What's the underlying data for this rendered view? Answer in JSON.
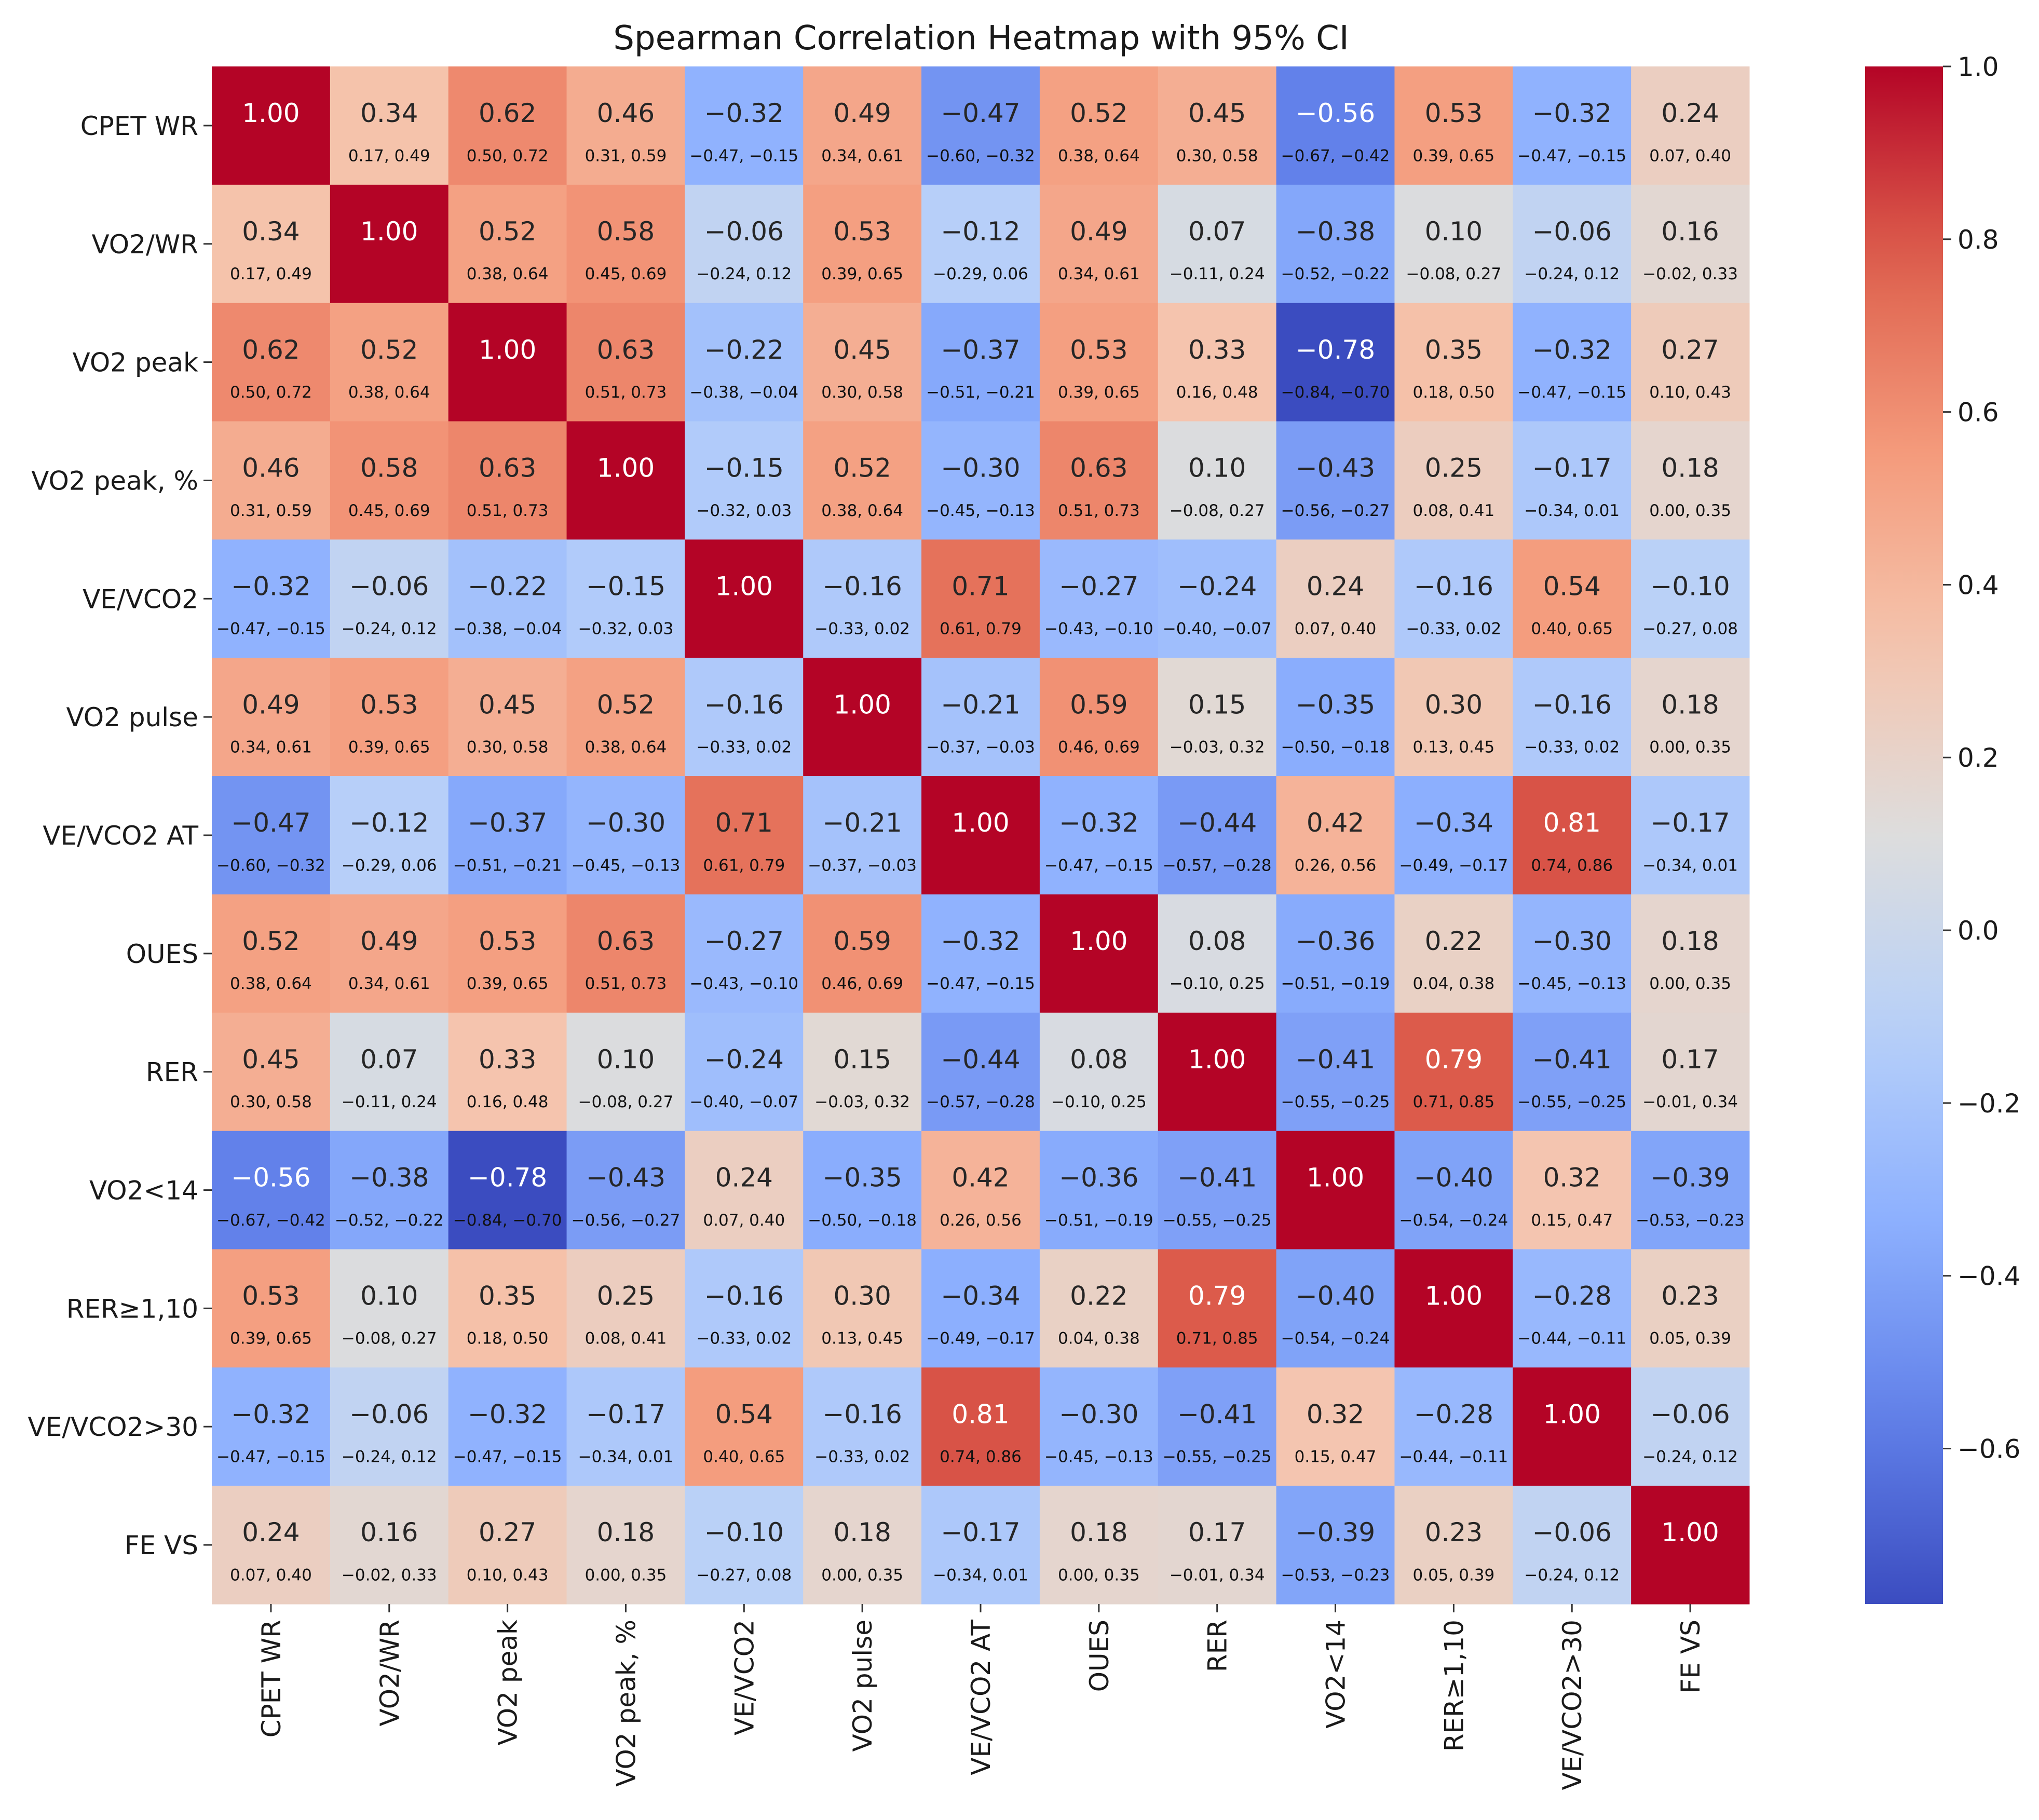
{
  "chart_data": {
    "type": "heatmap",
    "title": "Spearman Correlation Heatmap with 95% CI",
    "xlabel": "",
    "ylabel": "",
    "labels": [
      "CPET WR",
      "VO2/WR",
      "VO2 peak",
      "VO2 peak, %",
      "VE/VCO2",
      "VO2 pulse",
      "VE/VCO2 AT",
      "OUES",
      "RER",
      "VO2<14",
      "RER≥1,10",
      "VE/VCO2>30",
      "FE VS"
    ],
    "values": [
      [
        "1.00",
        "0.34",
        "0.62",
        "0.46",
        "−0.32",
        "0.49",
        "−0.47",
        "0.52",
        "0.45",
        "−0.56",
        "0.53",
        "−0.32",
        "0.24"
      ],
      [
        "0.34",
        "1.00",
        "0.52",
        "0.58",
        "−0.06",
        "0.53",
        "−0.12",
        "0.49",
        "0.07",
        "−0.38",
        "0.10",
        "−0.06",
        "0.16"
      ],
      [
        "0.62",
        "0.52",
        "1.00",
        "0.63",
        "−0.22",
        "0.45",
        "−0.37",
        "0.53",
        "0.33",
        "−0.78",
        "0.35",
        "−0.32",
        "0.27"
      ],
      [
        "0.46",
        "0.58",
        "0.63",
        "1.00",
        "−0.15",
        "0.52",
        "−0.30",
        "0.63",
        "0.10",
        "−0.43",
        "0.25",
        "−0.17",
        "0.18"
      ],
      [
        "−0.32",
        "−0.06",
        "−0.22",
        "−0.15",
        "1.00",
        "−0.16",
        "0.71",
        "−0.27",
        "−0.24",
        "0.24",
        "−0.16",
        "0.54",
        "−0.10"
      ],
      [
        "0.49",
        "0.53",
        "0.45",
        "0.52",
        "−0.16",
        "1.00",
        "−0.21",
        "0.59",
        "0.15",
        "−0.35",
        "0.30",
        "−0.16",
        "0.18"
      ],
      [
        "−0.47",
        "−0.12",
        "−0.37",
        "−0.30",
        "0.71",
        "−0.21",
        "1.00",
        "−0.32",
        "−0.44",
        "0.42",
        "−0.34",
        "0.81",
        "−0.17"
      ],
      [
        "0.52",
        "0.49",
        "0.53",
        "0.63",
        "−0.27",
        "0.59",
        "−0.32",
        "1.00",
        "0.08",
        "−0.36",
        "0.22",
        "−0.30",
        "0.18"
      ],
      [
        "0.45",
        "0.07",
        "0.33",
        "0.10",
        "−0.24",
        "0.15",
        "−0.44",
        "0.08",
        "1.00",
        "−0.41",
        "0.79",
        "−0.41",
        "0.17"
      ],
      [
        "−0.56",
        "−0.38",
        "−0.78",
        "−0.43",
        "0.24",
        "−0.35",
        "0.42",
        "−0.36",
        "−0.41",
        "1.00",
        "−0.40",
        "0.32",
        "−0.39"
      ],
      [
        "0.53",
        "0.10",
        "0.35",
        "0.25",
        "−0.16",
        "0.30",
        "−0.34",
        "0.22",
        "0.79",
        "−0.40",
        "1.00",
        "−0.28",
        "0.23"
      ],
      [
        "−0.32",
        "−0.06",
        "−0.32",
        "−0.17",
        "0.54",
        "−0.16",
        "0.81",
        "−0.30",
        "−0.41",
        "0.32",
        "−0.28",
        "1.00",
        "−0.06"
      ],
      [
        "0.24",
        "0.16",
        "0.27",
        "0.18",
        "−0.10",
        "0.18",
        "−0.17",
        "0.18",
        "0.17",
        "−0.39",
        "0.23",
        "−0.06",
        "1.00"
      ]
    ],
    "ci": [
      [
        "",
        "0.17, 0.49",
        "0.50, 0.72",
        "0.31, 0.59",
        "−0.47, −0.15",
        "0.34, 0.61",
        "−0.60, −0.32",
        "0.38, 0.64",
        "0.30, 0.58",
        "−0.67, −0.42",
        "0.39, 0.65",
        "−0.47, −0.15",
        "0.07, 0.40"
      ],
      [
        "0.17, 0.49",
        "",
        "0.38, 0.64",
        "0.45, 0.69",
        "−0.24, 0.12",
        "0.39, 0.65",
        "−0.29, 0.06",
        "0.34, 0.61",
        "−0.11, 0.24",
        "−0.52, −0.22",
        "−0.08, 0.27",
        "−0.24, 0.12",
        "−0.02, 0.33"
      ],
      [
        "0.50, 0.72",
        "0.38, 0.64",
        "",
        "0.51, 0.73",
        "−0.38, −0.04",
        "0.30, 0.58",
        "−0.51, −0.21",
        "0.39, 0.65",
        "0.16, 0.48",
        "−0.84, −0.70",
        "0.18, 0.50",
        "−0.47, −0.15",
        "0.10, 0.43"
      ],
      [
        "0.31, 0.59",
        "0.45, 0.69",
        "0.51, 0.73",
        "",
        "−0.32, 0.03",
        "0.38, 0.64",
        "−0.45, −0.13",
        "0.51, 0.73",
        "−0.08, 0.27",
        "−0.56, −0.27",
        "0.08, 0.41",
        "−0.34, 0.01",
        "0.00, 0.35"
      ],
      [
        "−0.47, −0.15",
        "−0.24, 0.12",
        "−0.38, −0.04",
        "−0.32, 0.03",
        "",
        "−0.33, 0.02",
        "0.61, 0.79",
        "−0.43, −0.10",
        "−0.40, −0.07",
        "0.07, 0.40",
        "−0.33, 0.02",
        "0.40, 0.65",
        "−0.27, 0.08"
      ],
      [
        "0.34, 0.61",
        "0.39, 0.65",
        "0.30, 0.58",
        "0.38, 0.64",
        "−0.33, 0.02",
        "",
        "−0.37, −0.03",
        "0.46, 0.69",
        "−0.03, 0.32",
        "−0.50, −0.18",
        "0.13, 0.45",
        "−0.33, 0.02",
        "0.00, 0.35"
      ],
      [
        "−0.60, −0.32",
        "−0.29, 0.06",
        "−0.51, −0.21",
        "−0.45, −0.13",
        "0.61, 0.79",
        "−0.37, −0.03",
        "",
        "−0.47, −0.15",
        "−0.57, −0.28",
        "0.26, 0.56",
        "−0.49, −0.17",
        "0.74, 0.86",
        "−0.34, 0.01"
      ],
      [
        "0.38, 0.64",
        "0.34, 0.61",
        "0.39, 0.65",
        "0.51, 0.73",
        "−0.43, −0.10",
        "0.46, 0.69",
        "−0.47, −0.15",
        "",
        "−0.10, 0.25",
        "−0.51, −0.19",
        "0.04, 0.38",
        "−0.45, −0.13",
        "0.00, 0.35"
      ],
      [
        "0.30, 0.58",
        "−0.11, 0.24",
        "0.16, 0.48",
        "−0.08, 0.27",
        "−0.40, −0.07",
        "−0.03, 0.32",
        "−0.57, −0.28",
        "−0.10, 0.25",
        "",
        "−0.55, −0.25",
        "0.71, 0.85",
        "−0.55, −0.25",
        "−0.01, 0.34"
      ],
      [
        "−0.67, −0.42",
        "−0.52, −0.22",
        "−0.84, −0.70",
        "−0.56, −0.27",
        "0.07, 0.40",
        "−0.50, −0.18",
        "0.26, 0.56",
        "−0.51, −0.19",
        "−0.55, −0.25",
        "",
        "−0.54, −0.24",
        "0.15, 0.47",
        "−0.53, −0.23"
      ],
      [
        "0.39, 0.65",
        "−0.08, 0.27",
        "0.18, 0.50",
        "0.08, 0.41",
        "−0.33, 0.02",
        "0.13, 0.45",
        "−0.49, −0.17",
        "0.04, 0.38",
        "0.71, 0.85",
        "−0.54, −0.24",
        "",
        "−0.44, −0.11",
        "0.05, 0.39"
      ],
      [
        "−0.47, −0.15",
        "−0.24, 0.12",
        "−0.47, −0.15",
        "−0.34, 0.01",
        "0.40, 0.65",
        "−0.33, 0.02",
        "0.74, 0.86",
        "−0.45, −0.13",
        "−0.55, −0.25",
        "0.15, 0.47",
        "−0.44, −0.11",
        "",
        "−0.24, 0.12"
      ],
      [
        "0.07, 0.40",
        "−0.02, 0.33",
        "0.10, 0.43",
        "0.00, 0.35",
        "−0.27, 0.08",
        "0.00, 0.35",
        "−0.34, 0.01",
        "0.00, 0.35",
        "−0.01, 0.34",
        "−0.53, −0.23",
        "0.05, 0.39",
        "−0.24, 0.12",
        ""
      ]
    ],
    "colorbar": {
      "range": [
        -0.78,
        1.0
      ],
      "ticks": [
        "1.0",
        "0.8",
        "0.6",
        "0.4",
        "0.2",
        "0.0",
        "−0.2",
        "−0.4",
        "−0.6"
      ],
      "colormap": "coolwarm",
      "low_color": "#3b4cc0",
      "mid_color": "#dddddd",
      "high_color": "#b40426"
    }
  }
}
